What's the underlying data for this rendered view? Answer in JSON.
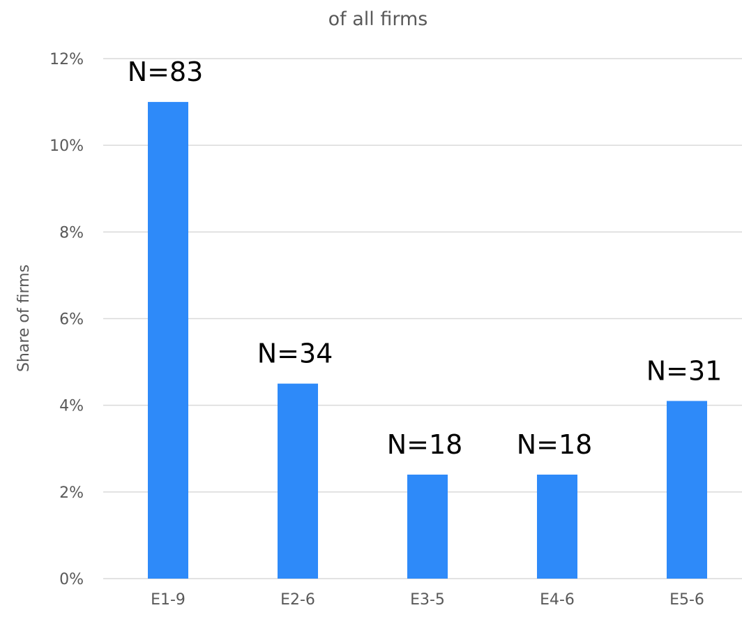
{
  "chart_data": {
    "type": "bar",
    "title": "of all firms",
    "xlabel": "",
    "ylabel": "Share of firms",
    "ylim": [
      0,
      12
    ],
    "y_ticks": [
      0,
      2,
      4,
      6,
      8,
      10,
      12
    ],
    "y_tick_labels": [
      "0%",
      "2%",
      "4%",
      "6%",
      "8%",
      "10%",
      "12%"
    ],
    "grid": true,
    "legend": "none",
    "bar_color": "#2E8AF9",
    "categories": [
      "E1-9",
      "E2-6",
      "E3-5",
      "E4-6",
      "E5-6"
    ],
    "values": [
      11.0,
      4.5,
      2.4,
      2.4,
      4.1
    ],
    "data_labels": [
      "N=83",
      "N=34",
      "N=18",
      "N=18",
      "N=31"
    ]
  }
}
